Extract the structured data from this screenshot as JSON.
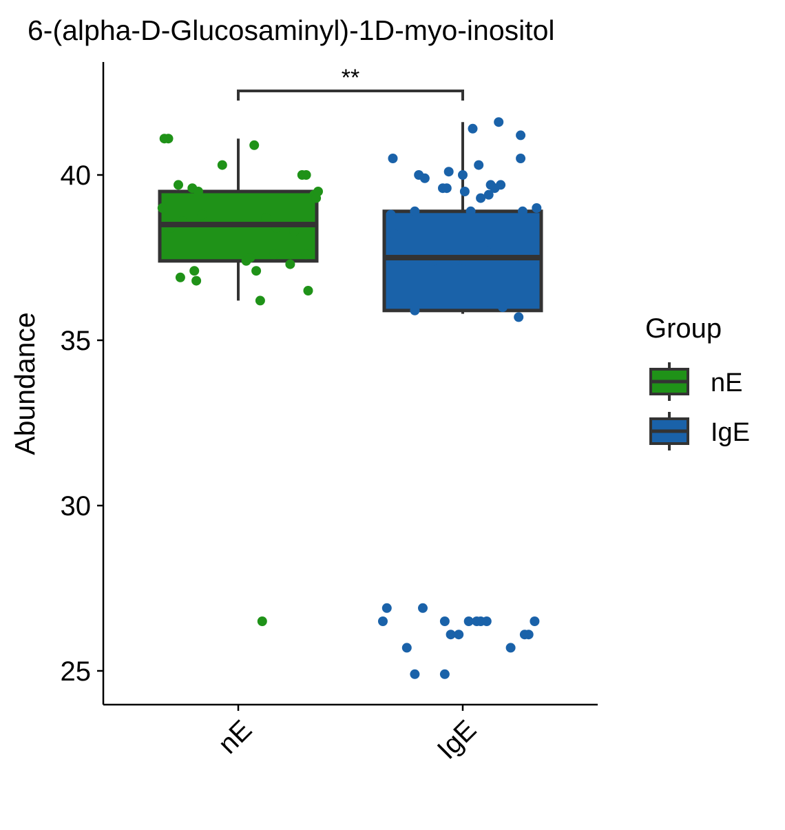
{
  "chart_data": {
    "type": "box",
    "title": "6-(alpha-D-Glucosaminyl)-1D-myo-inositol",
    "xlabel": "",
    "ylabel": "Abundance",
    "ylim": [
      24,
      43.4
    ],
    "yticks": [
      25,
      30,
      35,
      40
    ],
    "categories": [
      "nE",
      "IgE"
    ],
    "legend": {
      "title": "Group",
      "position": "right",
      "entries": [
        "nE",
        "IgE"
      ]
    },
    "significance": {
      "groups": [
        "nE",
        "IgE"
      ],
      "label": "**"
    },
    "grid": false,
    "colors": {
      "nE": "#1f9218",
      "IgE": "#1a62a9",
      "box_line": "#333333"
    },
    "series": [
      {
        "name": "nE",
        "box": {
          "whisker_low": 36.2,
          "q1": 37.4,
          "median": 38.5,
          "q3": 39.5,
          "whisker_high": 41.1
        },
        "points": [
          [
            -0.38,
            39.0
          ],
          [
            -0.37,
            41.1
          ],
          [
            -0.35,
            41.1
          ],
          [
            -0.34,
            38.4
          ],
          [
            -0.3,
            39.7
          ],
          [
            -0.29,
            36.9
          ],
          [
            -0.28,
            38.6
          ],
          [
            -0.23,
            39.6
          ],
          [
            -0.22,
            37.1
          ],
          [
            -0.21,
            36.8
          ],
          [
            -0.2,
            39.5
          ],
          [
            -0.18,
            38.8
          ],
          [
            -0.08,
            40.3
          ],
          [
            -0.01,
            38.5
          ],
          [
            0.04,
            37.4
          ],
          [
            0.06,
            37.5
          ],
          [
            0.08,
            40.9
          ],
          [
            0.09,
            37.1
          ],
          [
            0.11,
            36.2
          ],
          [
            0.12,
            26.5
          ],
          [
            0.14,
            38.7
          ],
          [
            0.18,
            37.6
          ],
          [
            0.19,
            38.4
          ],
          [
            0.26,
            37.3
          ],
          [
            0.28,
            38.3
          ],
          [
            0.3,
            38.5
          ],
          [
            0.32,
            40.0
          ],
          [
            0.34,
            40.0
          ],
          [
            0.34,
            37.6
          ],
          [
            0.35,
            36.5
          ],
          [
            0.38,
            39.4
          ],
          [
            0.39,
            39.3
          ],
          [
            0.4,
            39.5
          ]
        ]
      },
      {
        "name": "IgE",
        "box": {
          "whisker_low": 35.8,
          "q1": 35.9,
          "median": 37.5,
          "q3": 38.9,
          "whisker_high": 41.6
        },
        "points": [
          [
            -0.4,
            26.5
          ],
          [
            -0.38,
            26.9
          ],
          [
            -0.36,
            38.8
          ],
          [
            -0.35,
            40.5
          ],
          [
            -0.34,
            38.2
          ],
          [
            -0.28,
            25.7
          ],
          [
            -0.29,
            37.5
          ],
          [
            -0.24,
            24.9
          ],
          [
            -0.24,
            35.9
          ],
          [
            -0.24,
            38.9
          ],
          [
            -0.22,
            40.0
          ],
          [
            -0.2,
            26.9
          ],
          [
            -0.19,
            39.9
          ],
          [
            -0.15,
            37.4
          ],
          [
            -0.1,
            39.6
          ],
          [
            -0.09,
            26.5
          ],
          [
            -0.09,
            24.9
          ],
          [
            -0.08,
            39.6
          ],
          [
            -0.07,
            40.1
          ],
          [
            -0.07,
            37.6
          ],
          [
            -0.06,
            26.1
          ],
          [
            -0.04,
            37.4
          ],
          [
            -0.02,
            26.1
          ],
          [
            0.0,
            40.0
          ],
          [
            0.01,
            39.5
          ],
          [
            0.01,
            37.4
          ],
          [
            0.03,
            26.5
          ],
          [
            0.04,
            38.9
          ],
          [
            0.05,
            41.4
          ],
          [
            0.07,
            26.5
          ],
          [
            0.08,
            40.3
          ],
          [
            0.09,
            26.5
          ],
          [
            0.09,
            39.3
          ],
          [
            0.12,
            37.7
          ],
          [
            0.12,
            26.5
          ],
          [
            0.13,
            39.4
          ],
          [
            0.14,
            39.7
          ],
          [
            0.15,
            37.5
          ],
          [
            0.16,
            39.6
          ],
          [
            0.18,
            41.6
          ],
          [
            0.19,
            39.7
          ],
          [
            0.2,
            36.0
          ],
          [
            0.24,
            25.7
          ],
          [
            0.26,
            37.5
          ],
          [
            0.28,
            35.7
          ],
          [
            0.29,
            41.2
          ],
          [
            0.29,
            40.5
          ],
          [
            0.3,
            38.9
          ],
          [
            0.31,
            26.1
          ],
          [
            0.33,
            26.1
          ],
          [
            0.35,
            37.5
          ],
          [
            0.36,
            37.6
          ],
          [
            0.36,
            26.5
          ],
          [
            0.37,
            39.0
          ]
        ]
      }
    ]
  }
}
